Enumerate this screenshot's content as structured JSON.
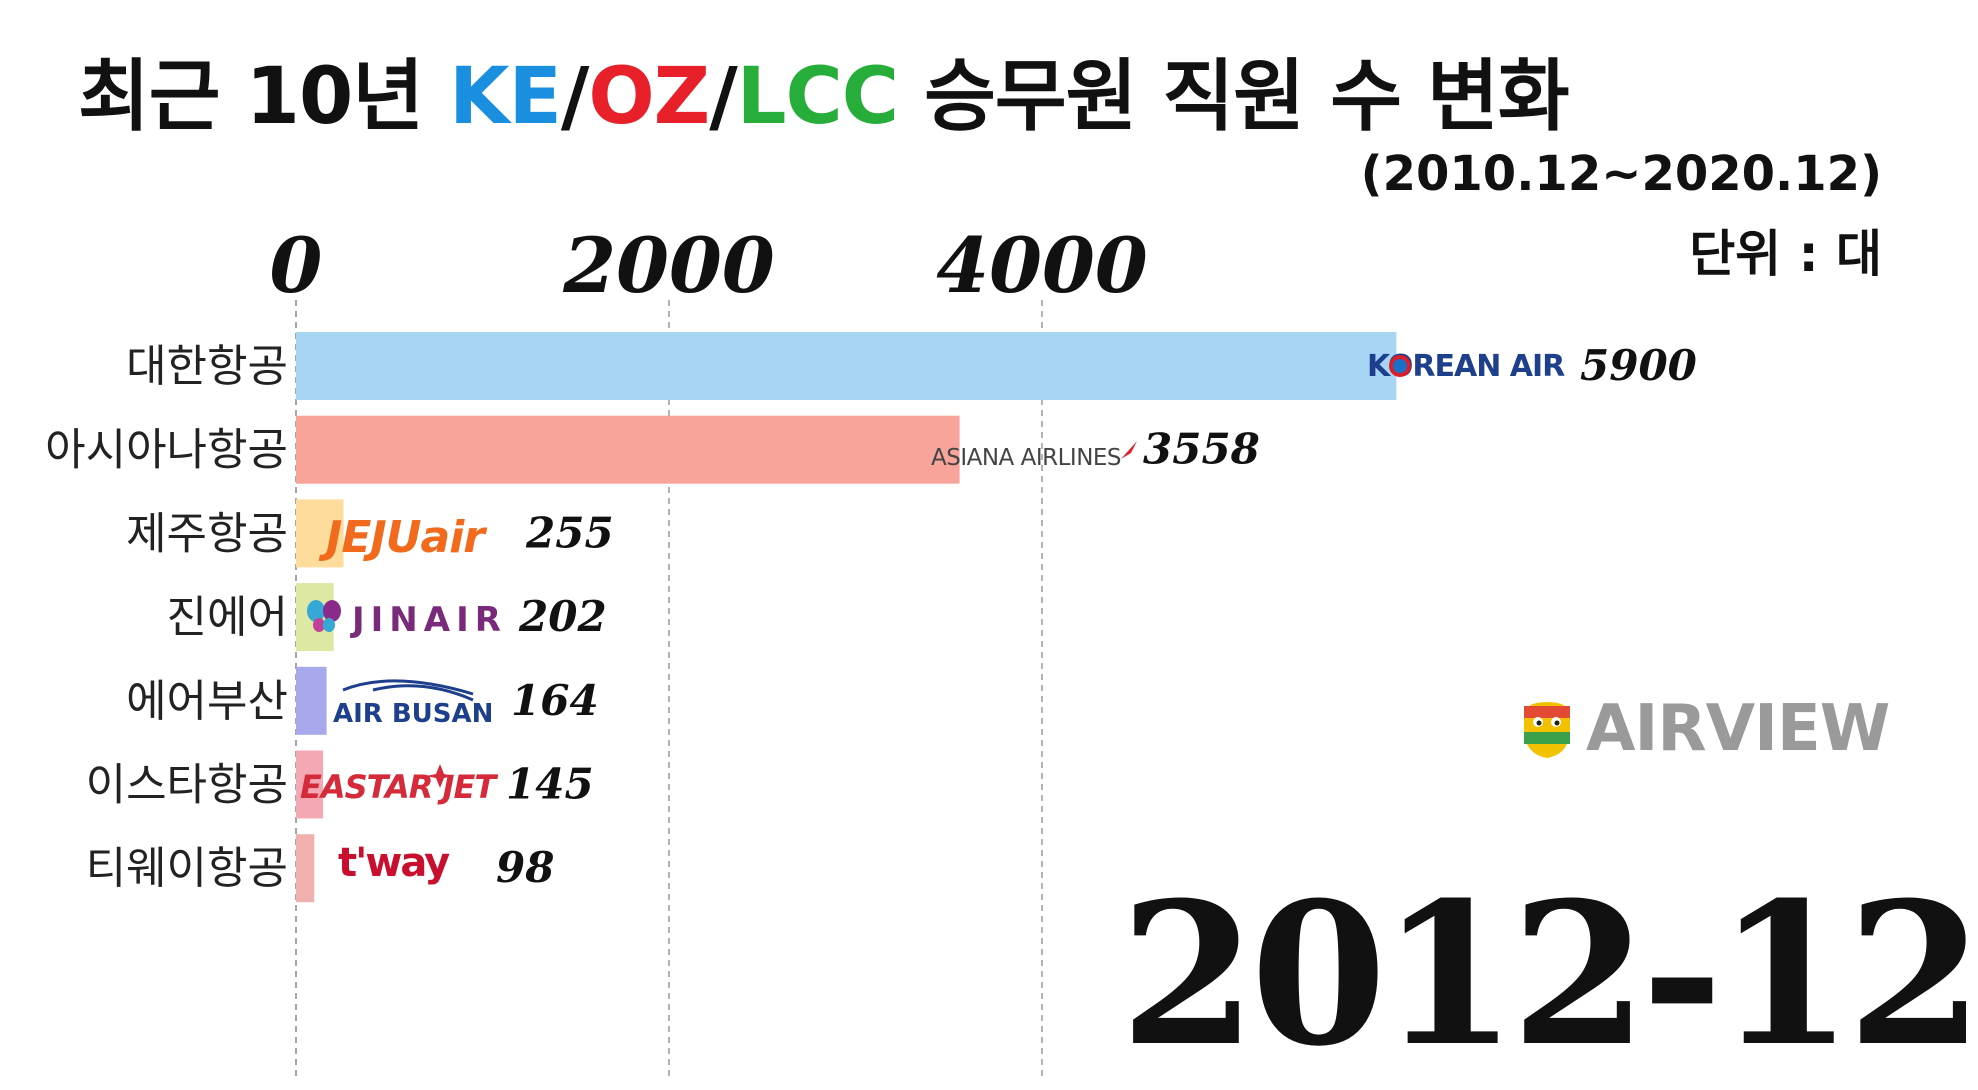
{
  "title": {
    "prefix": "최근 10년 ",
    "ke": "KE",
    "slash1": "/",
    "oz": "OZ",
    "slash2": "/",
    "lcc": "LCC",
    "suffix": " 승무원 직원 수 변화"
  },
  "period": "(2010.12~2020.12)",
  "unit": "단위 : 대",
  "watermark": "AIRVIEW",
  "date_label": "2012-12",
  "colors": {
    "ke": "#1a8fe0",
    "oz": "#e8202a",
    "lcc": "#27ae3a"
  },
  "logos": {
    "korean_air": "KOREAN AIR",
    "asiana": "ASIANA AIRLINES",
    "jeju": "JEJUair",
    "jin": "JINAIR",
    "busan": "AIR BUSAN",
    "eastar": "EASTAR JET",
    "tway": "t'way"
  },
  "chart_data": {
    "type": "bar",
    "orientation": "horizontal",
    "xlim": [
      0,
      7000
    ],
    "ticks": [
      0,
      2000,
      4000
    ],
    "tick_labels": [
      "0",
      "2000",
      "4000"
    ],
    "grid": true,
    "categories": [
      "대한항공",
      "아시아나항공",
      "제주항공",
      "진에어",
      "에어부산",
      "이스타항공",
      "티웨이항공"
    ],
    "values": [
      5900,
      3558,
      255,
      202,
      164,
      145,
      98
    ],
    "value_labels": [
      "5900",
      "3558",
      "255",
      "202",
      "164",
      "145",
      "98"
    ],
    "bar_colors": [
      "#a9d5f5",
      "#f8a49a",
      "#fddc9c",
      "#dde8a2",
      "#a8a8ec",
      "#f4a8b4",
      "#f0b0ae"
    ]
  }
}
